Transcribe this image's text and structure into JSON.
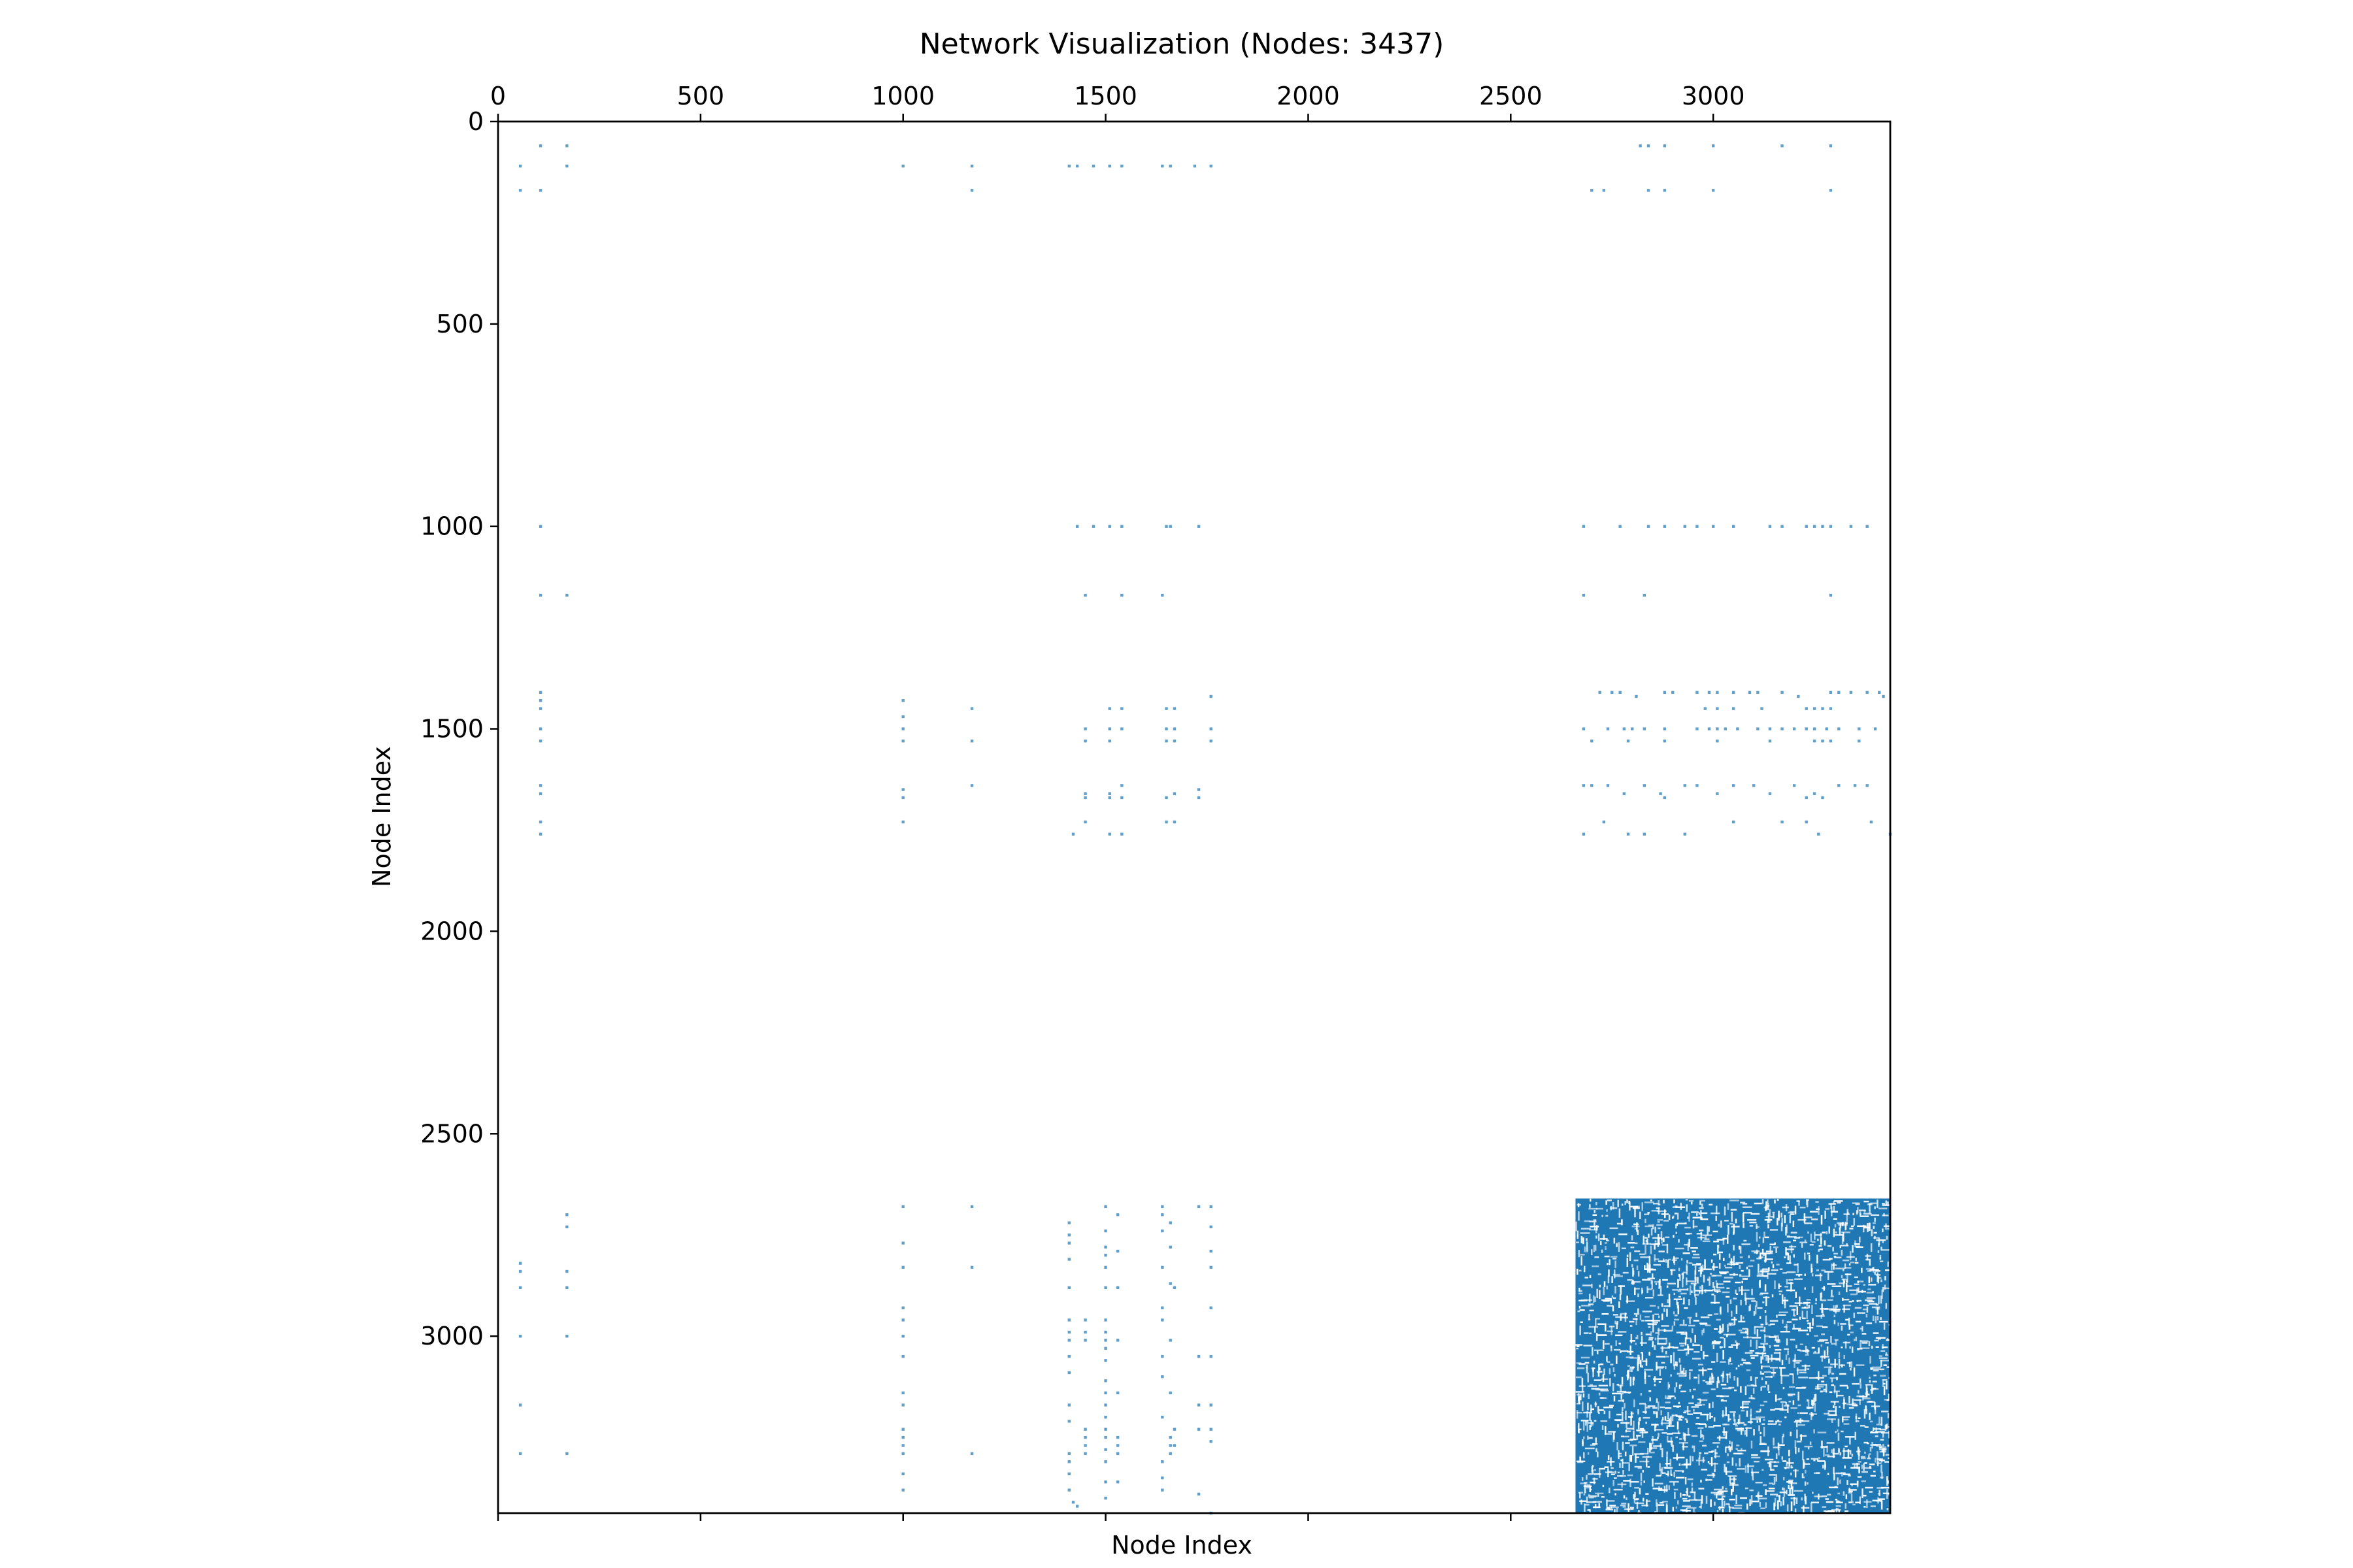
{
  "chart_data": {
    "type": "scatter",
    "title": "Network Visualization (Nodes: 3437)",
    "xlabel": "Node Index",
    "ylabel": "Node Index",
    "xlim": [
      0,
      3437
    ],
    "ylim": [
      3437,
      0
    ],
    "x_ticks": [
      0,
      500,
      1000,
      1500,
      2000,
      2500,
      3000
    ],
    "y_ticks": [
      0,
      500,
      1000,
      1500,
      2000,
      2500,
      3000
    ],
    "marker_color": "#1f77b4",
    "dense_block": {
      "x_range": [
        2660,
        3437
      ],
      "y_range": [
        2660,
        3437
      ],
      "description": "dense community of connections"
    },
    "points": [
      [
        55,
        110
      ],
      [
        55,
        170
      ],
      [
        105,
        60
      ],
      [
        105,
        170
      ],
      [
        170,
        60
      ],
      [
        170,
        110
      ],
      [
        1000,
        110
      ],
      [
        1170,
        110
      ],
      [
        1170,
        170
      ],
      [
        1410,
        110
      ],
      [
        1430,
        110
      ],
      [
        1470,
        110
      ],
      [
        1510,
        110
      ],
      [
        1540,
        110
      ],
      [
        1640,
        110
      ],
      [
        1660,
        110
      ],
      [
        1720,
        110
      ],
      [
        1760,
        110
      ],
      [
        2820,
        60
      ],
      [
        2840,
        60
      ],
      [
        2880,
        60
      ],
      [
        3000,
        60
      ],
      [
        3170,
        60
      ],
      [
        3290,
        60
      ],
      [
        2700,
        170
      ],
      [
        2730,
        170
      ],
      [
        2840,
        170
      ],
      [
        2880,
        170
      ],
      [
        3000,
        170
      ],
      [
        3290,
        170
      ],
      [
        105,
        1000
      ],
      [
        105,
        1170
      ],
      [
        170,
        1170
      ],
      [
        1430,
        1000
      ],
      [
        1470,
        1000
      ],
      [
        1510,
        1000
      ],
      [
        1540,
        1000
      ],
      [
        1650,
        1000
      ],
      [
        1660,
        1000
      ],
      [
        1730,
        1000
      ],
      [
        2680,
        1000
      ],
      [
        2770,
        1000
      ],
      [
        2840,
        1000
      ],
      [
        2880,
        1000
      ],
      [
        2930,
        1000
      ],
      [
        2960,
        1000
      ],
      [
        3000,
        1000
      ],
      [
        3050,
        1000
      ],
      [
        3140,
        1000
      ],
      [
        3170,
        1000
      ],
      [
        3230,
        1000
      ],
      [
        3250,
        1000
      ],
      [
        3270,
        1000
      ],
      [
        3290,
        1000
      ],
      [
        3340,
        1000
      ],
      [
        3380,
        1000
      ],
      [
        2680,
        1170
      ],
      [
        2830,
        1170
      ],
      [
        3290,
        1170
      ],
      [
        1450,
        1170
      ],
      [
        1540,
        1170
      ],
      [
        1640,
        1170
      ],
      [
        105,
        1410
      ],
      [
        105,
        1430
      ],
      [
        105,
        1450
      ],
      [
        105,
        1500
      ],
      [
        105,
        1530
      ],
      [
        105,
        1640
      ],
      [
        105,
        1660
      ],
      [
        105,
        1730
      ],
      [
        105,
        1760
      ],
      [
        1000,
        1430
      ],
      [
        1000,
        1470
      ],
      [
        1000,
        1500
      ],
      [
        1000,
        1530
      ],
      [
        1000,
        1650
      ],
      [
        1000,
        1670
      ],
      [
        1000,
        1730
      ],
      [
        1170,
        1450
      ],
      [
        1170,
        1530
      ],
      [
        1170,
        1640
      ],
      [
        1420,
        1760
      ],
      [
        1450,
        1500
      ],
      [
        1450,
        1530
      ],
      [
        1450,
        1660
      ],
      [
        1450,
        1670
      ],
      [
        1450,
        1730
      ],
      [
        1510,
        1450
      ],
      [
        1510,
        1500
      ],
      [
        1510,
        1530
      ],
      [
        1510,
        1660
      ],
      [
        1510,
        1670
      ],
      [
        1510,
        1760
      ],
      [
        1540,
        1450
      ],
      [
        1540,
        1500
      ],
      [
        1540,
        1640
      ],
      [
        1540,
        1670
      ],
      [
        1540,
        1760
      ],
      [
        1650,
        1450
      ],
      [
        1650,
        1500
      ],
      [
        1650,
        1530
      ],
      [
        1650,
        1670
      ],
      [
        1650,
        1730
      ],
      [
        1670,
        1450
      ],
      [
        1670,
        1500
      ],
      [
        1670,
        1530
      ],
      [
        1670,
        1660
      ],
      [
        1670,
        1730
      ],
      [
        1730,
        1650
      ],
      [
        1730,
        1670
      ],
      [
        1760,
        1420
      ],
      [
        1760,
        1500
      ],
      [
        1760,
        1530
      ],
      [
        2720,
        1410
      ],
      [
        2750,
        1410
      ],
      [
        2770,
        1410
      ],
      [
        2810,
        1420
      ],
      [
        2880,
        1410
      ],
      [
        2900,
        1410
      ],
      [
        2960,
        1410
      ],
      [
        2990,
        1410
      ],
      [
        3010,
        1410
      ],
      [
        3050,
        1410
      ],
      [
        3090,
        1410
      ],
      [
        3110,
        1410
      ],
      [
        3170,
        1410
      ],
      [
        3210,
        1420
      ],
      [
        3290,
        1410
      ],
      [
        3310,
        1410
      ],
      [
        3340,
        1410
      ],
      [
        3380,
        1410
      ],
      [
        3410,
        1410
      ],
      [
        3420,
        1420
      ],
      [
        2680,
        1500
      ],
      [
        2700,
        1530
      ],
      [
        2740,
        1500
      ],
      [
        2780,
        1500
      ],
      [
        2800,
        1500
      ],
      [
        2830,
        1500
      ],
      [
        2880,
        1500
      ],
      [
        2960,
        1500
      ],
      [
        2990,
        1500
      ],
      [
        3010,
        1500
      ],
      [
        3030,
        1500
      ],
      [
        3060,
        1500
      ],
      [
        3110,
        1500
      ],
      [
        3140,
        1500
      ],
      [
        3170,
        1500
      ],
      [
        3200,
        1500
      ],
      [
        3230,
        1500
      ],
      [
        3250,
        1500
      ],
      [
        3280,
        1500
      ],
      [
        3310,
        1500
      ],
      [
        3360,
        1500
      ],
      [
        3400,
        1500
      ],
      [
        2980,
        1450
      ],
      [
        3010,
        1450
      ],
      [
        3050,
        1450
      ],
      [
        3120,
        1450
      ],
      [
        3230,
        1450
      ],
      [
        3250,
        1450
      ],
      [
        3270,
        1450
      ],
      [
        3290,
        1450
      ],
      [
        2790,
        1530
      ],
      [
        2880,
        1530
      ],
      [
        3010,
        1530
      ],
      [
        3140,
        1530
      ],
      [
        3250,
        1530
      ],
      [
        3270,
        1530
      ],
      [
        3290,
        1530
      ],
      [
        3360,
        1530
      ],
      [
        2680,
        1640
      ],
      [
        2700,
        1640
      ],
      [
        2740,
        1640
      ],
      [
        2780,
        1660
      ],
      [
        2830,
        1640
      ],
      [
        2870,
        1660
      ],
      [
        2880,
        1670
      ],
      [
        2930,
        1640
      ],
      [
        2960,
        1640
      ],
      [
        3010,
        1660
      ],
      [
        3050,
        1640
      ],
      [
        3100,
        1640
      ],
      [
        3140,
        1660
      ],
      [
        3200,
        1640
      ],
      [
        3230,
        1670
      ],
      [
        3250,
        1660
      ],
      [
        3270,
        1670
      ],
      [
        3310,
        1640
      ],
      [
        3350,
        1640
      ],
      [
        3380,
        1640
      ],
      [
        2680,
        1760
      ],
      [
        2730,
        1730
      ],
      [
        2790,
        1760
      ],
      [
        2830,
        1760
      ],
      [
        2930,
        1760
      ],
      [
        3050,
        1730
      ],
      [
        3170,
        1730
      ],
      [
        3230,
        1730
      ],
      [
        3260,
        1760
      ],
      [
        3390,
        1730
      ],
      [
        3437,
        1760
      ],
      [
        55,
        2820
      ],
      [
        55,
        2840
      ],
      [
        55,
        2880
      ],
      [
        55,
        3000
      ],
      [
        55,
        3170
      ],
      [
        55,
        3290
      ],
      [
        170,
        2700
      ],
      [
        170,
        2730
      ],
      [
        170,
        2840
      ],
      [
        170,
        2880
      ],
      [
        170,
        3000
      ],
      [
        170,
        3290
      ],
      [
        1000,
        2680
      ],
      [
        1000,
        2770
      ],
      [
        1000,
        2830
      ],
      [
        1000,
        2930
      ],
      [
        1000,
        2960
      ],
      [
        1000,
        3000
      ],
      [
        1000,
        3050
      ],
      [
        1000,
        3140
      ],
      [
        1000,
        3170
      ],
      [
        1000,
        3230
      ],
      [
        1000,
        3250
      ],
      [
        1000,
        3270
      ],
      [
        1000,
        3290
      ],
      [
        1000,
        3340
      ],
      [
        1000,
        3380
      ],
      [
        1170,
        2680
      ],
      [
        1170,
        2830
      ],
      [
        1170,
        3290
      ],
      [
        1410,
        2720
      ],
      [
        1410,
        2750
      ],
      [
        1410,
        2770
      ],
      [
        1410,
        2810
      ],
      [
        1410,
        2880
      ],
      [
        1410,
        2960
      ],
      [
        1410,
        2990
      ],
      [
        1410,
        3010
      ],
      [
        1410,
        3050
      ],
      [
        1410,
        3090
      ],
      [
        1410,
        3170
      ],
      [
        1410,
        3210
      ],
      [
        1410,
        3290
      ],
      [
        1410,
        3310
      ],
      [
        1410,
        3340
      ],
      [
        1410,
        3380
      ],
      [
        1420,
        3410
      ],
      [
        1430,
        3420
      ],
      [
        1450,
        2960
      ],
      [
        1450,
        2990
      ],
      [
        1450,
        3010
      ],
      [
        1450,
        3230
      ],
      [
        1450,
        3250
      ],
      [
        1450,
        3270
      ],
      [
        1450,
        3290
      ],
      [
        1500,
        2680
      ],
      [
        1500,
        2740
      ],
      [
        1500,
        2780
      ],
      [
        1500,
        2800
      ],
      [
        1500,
        2830
      ],
      [
        1500,
        2880
      ],
      [
        1500,
        2960
      ],
      [
        1500,
        2990
      ],
      [
        1500,
        3010
      ],
      [
        1500,
        3030
      ],
      [
        1500,
        3060
      ],
      [
        1500,
        3110
      ],
      [
        1500,
        3140
      ],
      [
        1500,
        3170
      ],
      [
        1500,
        3200
      ],
      [
        1500,
        3230
      ],
      [
        1500,
        3250
      ],
      [
        1500,
        3280
      ],
      [
        1500,
        3310
      ],
      [
        1500,
        3360
      ],
      [
        1500,
        3400
      ],
      [
        1530,
        2700
      ],
      [
        1530,
        2790
      ],
      [
        1530,
        2880
      ],
      [
        1530,
        3010
      ],
      [
        1530,
        3140
      ],
      [
        1530,
        3250
      ],
      [
        1530,
        3270
      ],
      [
        1530,
        3290
      ],
      [
        1530,
        3360
      ],
      [
        1640,
        2680
      ],
      [
        1640,
        2700
      ],
      [
        1640,
        2740
      ],
      [
        1640,
        2830
      ],
      [
        1640,
        2930
      ],
      [
        1640,
        2960
      ],
      [
        1640,
        3050
      ],
      [
        1640,
        3100
      ],
      [
        1640,
        3200
      ],
      [
        1640,
        3310
      ],
      [
        1640,
        3350
      ],
      [
        1640,
        3380
      ],
      [
        1660,
        2720
      ],
      [
        1660,
        2780
      ],
      [
        1660,
        2870
      ],
      [
        1660,
        3010
      ],
      [
        1660,
        3140
      ],
      [
        1660,
        3250
      ],
      [
        1660,
        3270
      ],
      [
        1660,
        3290
      ],
      [
        1670,
        2880
      ],
      [
        1670,
        3230
      ],
      [
        1670,
        3270
      ],
      [
        1730,
        2680
      ],
      [
        1730,
        3050
      ],
      [
        1730,
        3170
      ],
      [
        1730,
        3230
      ],
      [
        1730,
        3390
      ],
      [
        1760,
        2680
      ],
      [
        1760,
        2730
      ],
      [
        1760,
        2790
      ],
      [
        1760,
        2830
      ],
      [
        1760,
        2930
      ],
      [
        1760,
        3050
      ],
      [
        1760,
        3170
      ],
      [
        1760,
        3230
      ],
      [
        1760,
        3260
      ],
      [
        1760,
        3437
      ]
    ]
  }
}
